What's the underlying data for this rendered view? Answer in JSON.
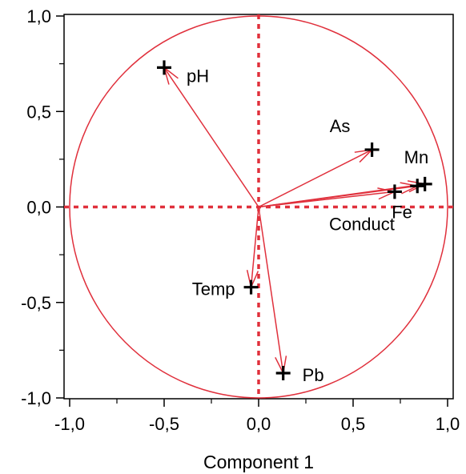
{
  "chart_data": {
    "type": "scatter",
    "subtype": "pca-correlation-circle",
    "title": "",
    "xlabel": "Component 1",
    "ylabel": "",
    "xlim": [
      -1.0,
      1.0
    ],
    "ylim": [
      -1.0,
      1.0
    ],
    "x_ticks": [
      "-1,0",
      "-0,5",
      "0,0",
      "0,5",
      "1,0"
    ],
    "y_ticks": [
      "1,0",
      "0,5",
      "0,0",
      "-0,5",
      "-1,0"
    ],
    "x_tick_values": [
      -1.0,
      -0.5,
      0.0,
      0.5,
      1.0
    ],
    "y_tick_values": [
      1.0,
      0.5,
      0.0,
      -0.5,
      -1.0
    ],
    "grid": false,
    "unit_circle": true,
    "accent_color": "#e0303c",
    "points": [
      {
        "label": "pH",
        "x": -0.5,
        "y": 0.73
      },
      {
        "label": "As",
        "x": 0.6,
        "y": 0.3
      },
      {
        "label": "Mn",
        "x": 0.88,
        "y": 0.12
      },
      {
        "label": "Fe",
        "x": 0.84,
        "y": 0.11
      },
      {
        "label": "Conduct",
        "x": 0.72,
        "y": 0.08
      },
      {
        "label": "Temp",
        "x": -0.04,
        "y": -0.42
      },
      {
        "label": "Pb",
        "x": 0.13,
        "y": -0.87
      }
    ]
  }
}
